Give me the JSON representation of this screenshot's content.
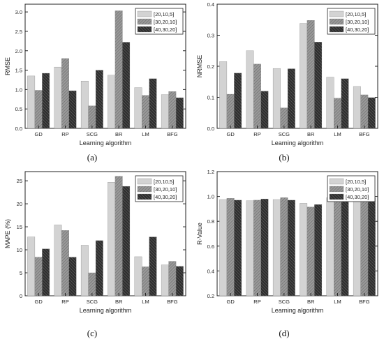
{
  "legend_labels": [
    "[20,10,5]",
    "[30,20,10]",
    "[40,30,20]"
  ],
  "colors": {
    "s0": "#d3d3d3",
    "s1": "#8c8c8c",
    "s2": "#3a3a3a",
    "axis": "#222222"
  },
  "chart_data": [
    {
      "type": "bar",
      "caption": "(a)",
      "xlabel": "Learning algorithm",
      "ylabel": "RMSE",
      "categories": [
        "GD",
        "RP",
        "SCG",
        "BR",
        "LM",
        "BFG"
      ],
      "ylim": [
        0,
        3.2
      ],
      "yticks": [
        0,
        0.5,
        1.0,
        1.5,
        2.0,
        2.5,
        3.0
      ],
      "ytick_labels": [
        "0.0",
        "0.5",
        "1.0",
        "1.5",
        "2.0",
        "2.5",
        "3.0"
      ],
      "legend_position": "top-right",
      "series": [
        {
          "name": "[20,10,5]",
          "values": [
            1.35,
            1.58,
            1.22,
            1.37,
            1.05,
            0.87
          ]
        },
        {
          "name": "[30,20,10]",
          "values": [
            0.98,
            1.8,
            0.58,
            3.03,
            0.85,
            0.95
          ]
        },
        {
          "name": "[40,30,20]",
          "values": [
            1.42,
            0.97,
            1.5,
            2.22,
            1.28,
            0.79
          ]
        }
      ]
    },
    {
      "type": "bar",
      "caption": "(b)",
      "xlabel": "Learning algorithm",
      "ylabel": "NRMSE",
      "categories": [
        "GD",
        "RP",
        "SCG",
        "BR",
        "LM",
        "BFG"
      ],
      "ylim": [
        0,
        0.4
      ],
      "yticks": [
        0,
        0.1,
        0.2,
        0.3,
        0.4
      ],
      "ytick_labels": [
        "0.0",
        "0.1",
        "0.2",
        "0.3",
        "0.4"
      ],
      "legend_position": "top-right",
      "series": [
        {
          "name": "[20,10,5]",
          "values": [
            0.215,
            0.25,
            0.193,
            0.338,
            0.165,
            0.135
          ]
        },
        {
          "name": "[30,20,10]",
          "values": [
            0.11,
            0.207,
            0.066,
            0.348,
            0.097,
            0.108
          ]
        },
        {
          "name": "[40,30,20]",
          "values": [
            0.178,
            0.12,
            0.192,
            0.278,
            0.16,
            0.099
          ]
        }
      ]
    },
    {
      "type": "bar",
      "caption": "(c)",
      "xlabel": "Learning algorithm",
      "ylabel": "MAPE (%)",
      "categories": [
        "GD",
        "RP",
        "SCG",
        "BR",
        "LM",
        "BFG"
      ],
      "ylim": [
        0,
        27
      ],
      "yticks": [
        0,
        5,
        10,
        15,
        20,
        25
      ],
      "ytick_labels": [
        "0",
        "5",
        "10",
        "15",
        "20",
        "25"
      ],
      "legend_position": "top-right",
      "series": [
        {
          "name": "[20,10,5]",
          "values": [
            12.8,
            15.4,
            11.0,
            24.7,
            8.5,
            6.7
          ]
        },
        {
          "name": "[30,20,10]",
          "values": [
            8.4,
            14.2,
            5.0,
            26.0,
            6.3,
            7.5
          ]
        },
        {
          "name": "[40,30,20]",
          "values": [
            10.2,
            8.4,
            12.0,
            23.8,
            12.8,
            6.4
          ]
        }
      ]
    },
    {
      "type": "bar",
      "caption": "(d)",
      "xlabel": "Learning algorithm",
      "ylabel": "R-Value",
      "categories": [
        "GD",
        "RP",
        "SCG",
        "BR",
        "LM",
        "BFG"
      ],
      "ylim": [
        0.2,
        1.2
      ],
      "yticks": [
        0.2,
        0.4,
        0.6,
        0.8,
        1.0,
        1.2
      ],
      "ytick_labels": [
        "0.2",
        "0.4",
        "0.6",
        "0.8",
        "1.0",
        "1.2"
      ],
      "legend_position": "top-right",
      "series": [
        {
          "name": "[20,10,5]",
          "values": [
            0.975,
            0.965,
            0.975,
            0.945,
            0.99,
            0.99
          ]
        },
        {
          "name": "[30,20,10]",
          "values": [
            0.985,
            0.97,
            0.99,
            0.915,
            0.995,
            0.99
          ]
        },
        {
          "name": "[40,30,20]",
          "values": [
            0.97,
            0.98,
            0.97,
            0.935,
            0.98,
            0.99
          ]
        }
      ]
    }
  ]
}
